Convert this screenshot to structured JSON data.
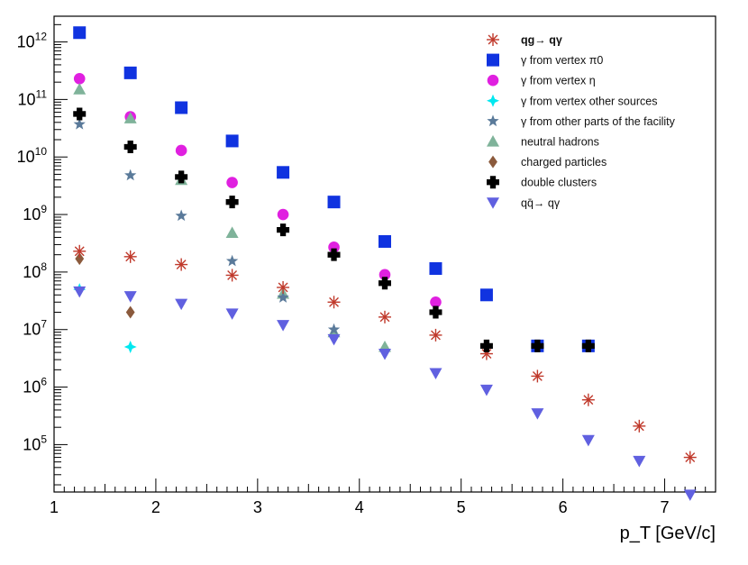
{
  "chart_data": {
    "type": "scatter",
    "title": "",
    "xlabel": "p_T [GeV/c]",
    "ylabel": "",
    "xlim": [
      1,
      7.5
    ],
    "ylim": [
      15000,
      2800000000000
    ],
    "y_scale": "log",
    "grid": false,
    "legend_position": "top-right",
    "x_ticks": [
      "1",
      "2",
      "3",
      "4",
      "5",
      "6",
      "7"
    ],
    "y_ticks": [
      {
        "value": 100000.0,
        "base": "10",
        "exp": "5"
      },
      {
        "value": 1000000.0,
        "base": "10",
        "exp": "6"
      },
      {
        "value": 10000000.0,
        "base": "10",
        "exp": "7"
      },
      {
        "value": 100000000.0,
        "base": "10",
        "exp": "8"
      },
      {
        "value": 1000000000.0,
        "base": "10",
        "exp": "9"
      },
      {
        "value": 10000000000.0,
        "base": "10",
        "exp": "10"
      },
      {
        "value": 100000000000.0,
        "base": "10",
        "exp": "11"
      },
      {
        "value": 1000000000000.0,
        "base": "10",
        "exp": "12"
      }
    ],
    "series": [
      {
        "name": "qg→ qγ",
        "marker": "asterisk",
        "color": "#c0392b",
        "x": [
          1.25,
          1.75,
          2.25,
          2.75,
          3.25,
          3.75,
          4.25,
          4.75,
          5.25,
          5.75,
          6.25,
          6.75,
          7.25
        ],
        "y": [
          230000000.0,
          185000000.0,
          135000000.0,
          88000000.0,
          54000000.0,
          30000000.0,
          16500000.0,
          8000000.0,
          3800000.0,
          1550000.0,
          600000.0,
          210000.0,
          60000.0
        ]
      },
      {
        "name": "γ from vertex π0",
        "marker": "square",
        "color": "#1033e0",
        "x": [
          1.25,
          1.75,
          2.25,
          2.75,
          3.25,
          3.75,
          4.25,
          4.75,
          5.25,
          5.75,
          6.25
        ],
        "y": [
          1450000000000.0,
          290000000000.0,
          72000000000.0,
          19000000000.0,
          5400000000.0,
          1650000000.0,
          340000000.0,
          115000000.0,
          40000000.0,
          5200000.0,
          5200000.0
        ]
      },
      {
        "name": "γ from vertex η",
        "marker": "circle",
        "color": "#e020e0",
        "x": [
          1.25,
          1.75,
          2.25,
          2.75,
          3.25,
          3.75,
          4.25,
          4.75
        ],
        "y": [
          230000000000.0,
          50000000000.0,
          13000000000.0,
          3600000000.0,
          1000000000.0,
          270000000.0,
          90000000.0,
          30000000.0
        ]
      },
      {
        "name": "γ from vertex other sources",
        "marker": "cross4",
        "color": "#00e8f0",
        "x": [
          1.25,
          1.75
        ],
        "y": [
          50000000.0,
          5000000.0
        ]
      },
      {
        "name": "γ from other parts of the facility",
        "marker": "star",
        "color": "#5a7a9a",
        "x": [
          1.25,
          1.75,
          2.25,
          2.75,
          3.25,
          3.75
        ],
        "y": [
          37000000000.0,
          4800000000.0,
          950000000.0,
          155000000.0,
          36000000.0,
          10000000.0
        ]
      },
      {
        "name": "neutral hadrons",
        "marker": "triangle-up",
        "color": "#7fb39a",
        "x": [
          1.25,
          1.75,
          2.25,
          2.75,
          3.25,
          3.75,
          4.25
        ],
        "y": [
          150000000000.0,
          47000000000.0,
          4000000000.0,
          480000000.0,
          42000000.0,
          9000000.0,
          5000000.0
        ]
      },
      {
        "name": "charged particles",
        "marker": "diamond",
        "color": "#8b5a3c",
        "x": [
          1.25,
          1.75
        ],
        "y": [
          170000000.0,
          20000000.0
        ]
      },
      {
        "name": "double clusters",
        "marker": "plus",
        "color": "#000000",
        "x": [
          1.25,
          1.75,
          2.25,
          2.75,
          3.25,
          3.75,
          4.25,
          4.75,
          5.25,
          5.75,
          6.25
        ],
        "y": [
          56000000000.0,
          15000000000.0,
          4500000000.0,
          1650000000.0,
          540000000.0,
          200000000.0,
          64000000.0,
          20000000.0,
          5200000.0,
          5200000.0,
          5200000.0
        ]
      },
      {
        "name": "qq̄→ qγ",
        "marker": "triangle-down",
        "color": "#6060e0",
        "x": [
          1.25,
          1.75,
          2.25,
          2.75,
          3.25,
          3.75,
          4.25,
          4.75,
          5.25,
          5.75,
          6.25,
          6.75,
          7.25
        ],
        "y": [
          46000000.0,
          38000000.0,
          28000000.0,
          19000000.0,
          12000000.0,
          6800000.0,
          3800000.0,
          1750000.0,
          900000.0,
          350000.0,
          120000.0,
          52000.0,
          13500.0
        ]
      }
    ]
  }
}
